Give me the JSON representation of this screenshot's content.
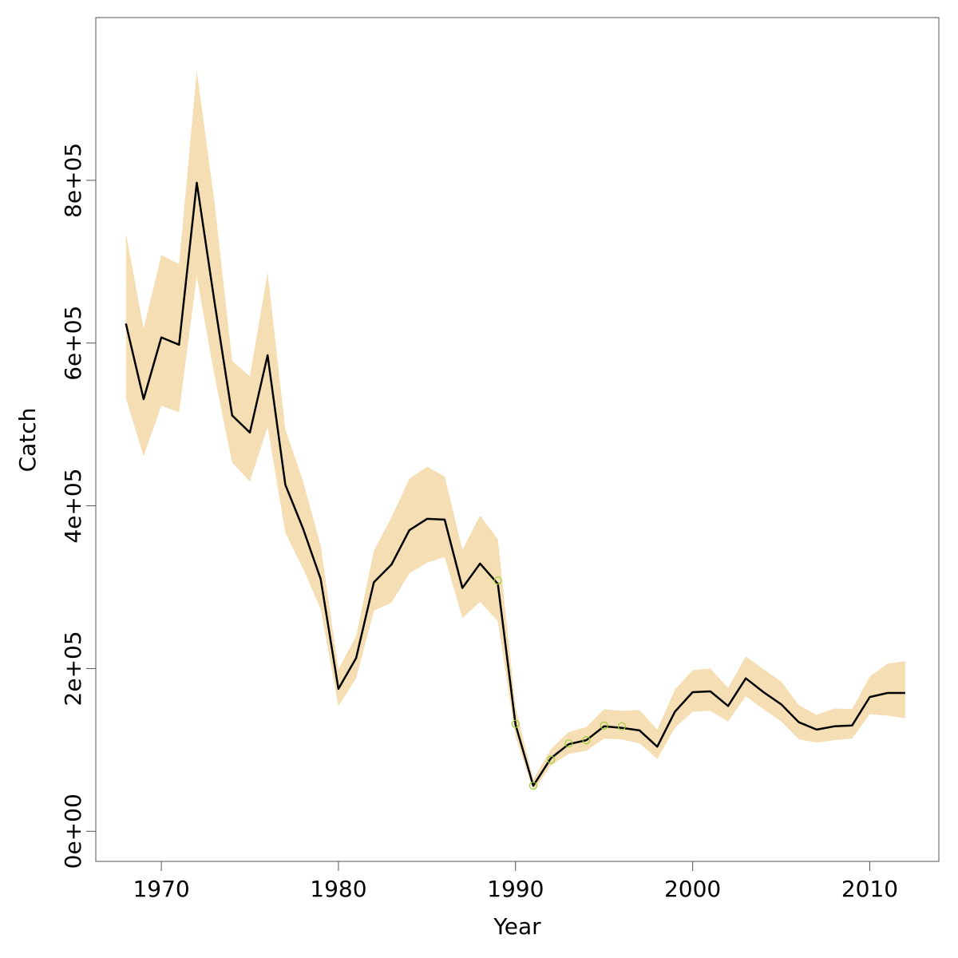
{
  "chart_data": {
    "type": "line",
    "xlabel": "Year",
    "ylabel": "Catch",
    "xlim": [
      1966.3,
      2013.9
    ],
    "ylim": [
      -37000,
      1000000
    ],
    "x_ticks": [
      1970,
      1980,
      1990,
      2000,
      2010
    ],
    "x_tick_labels": [
      "1970",
      "1980",
      "1990",
      "2000",
      "2010"
    ],
    "y_ticks": [
      0,
      200000,
      400000,
      600000,
      800000
    ],
    "y_tick_labels": [
      "0e+00",
      "2e+05",
      "4e+05",
      "6e+05",
      "8e+05"
    ],
    "grid": false,
    "legend": "none",
    "colors": {
      "band": "#f5deb3",
      "line": "#000000",
      "points": "#9acd32"
    },
    "x": [
      1968,
      1969,
      1970,
      1971,
      1972,
      1973,
      1974,
      1975,
      1976,
      1977,
      1978,
      1979,
      1980,
      1981,
      1982,
      1983,
      1984,
      1985,
      1986,
      1987,
      1988,
      1989,
      1990,
      1991,
      1992,
      1993,
      1994,
      1995,
      1996,
      1997,
      1998,
      1999,
      2000,
      2001,
      2002,
      2003,
      2004,
      2005,
      2006,
      2007,
      2008,
      2009,
      2010,
      2011,
      2012
    ],
    "series": [
      {
        "values": [
          624000,
          531000,
          607000,
          598000,
          797000,
          651000,
          511000,
          490000,
          585000,
          426000,
          372000,
          310000,
          175000,
          213000,
          306000,
          328000,
          370000,
          384000,
          383000,
          299000,
          329000,
          304000,
          131000,
          56000,
          90000,
          107000,
          112000,
          129000,
          127000,
          124000,
          104000,
          147000,
          171000,
          172000,
          154000,
          188000,
          171000,
          156000,
          134000,
          125000,
          129000,
          130000,
          165000,
          170000,
          170000
        ]
      }
    ],
    "band": {
      "lower": [
        532000,
        461000,
        523000,
        515000,
        682000,
        560000,
        453000,
        430000,
        497000,
        367000,
        323000,
        273000,
        154000,
        188000,
        271000,
        281000,
        317000,
        330000,
        337000,
        262000,
        282000,
        258000,
        116000,
        50000,
        81000,
        95000,
        99000,
        114000,
        113000,
        108000,
        89000,
        127000,
        147000,
        148000,
        135000,
        166000,
        150000,
        135000,
        113000,
        109000,
        112000,
        114000,
        144000,
        142000,
        139000
      ],
      "upper": [
        735000,
        618000,
        708000,
        697000,
        935000,
        774000,
        578000,
        559000,
        687000,
        494000,
        430000,
        351000,
        199000,
        240000,
        345000,
        386000,
        433000,
        448000,
        436000,
        346000,
        388000,
        359000,
        152000,
        64000,
        101000,
        122000,
        128000,
        150000,
        148000,
        149000,
        125000,
        174000,
        198000,
        200000,
        176000,
        215000,
        199000,
        184000,
        155000,
        143000,
        151000,
        150000,
        190000,
        206000,
        209000
      ]
    },
    "points": {
      "x": [
        1989,
        1990,
        1991,
        1992,
        1993,
        1994,
        1995,
        1996
      ],
      "y": [
        308000,
        132000,
        56000,
        88000,
        108000,
        112000,
        130000,
        129000
      ]
    }
  }
}
